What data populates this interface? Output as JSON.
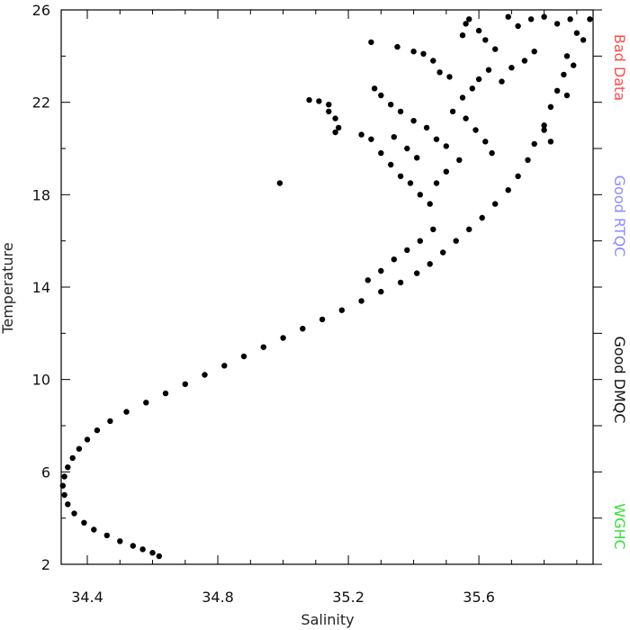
{
  "chart_data": {
    "type": "scatter",
    "title": "",
    "xlabel": "Salinity",
    "ylabel": "Temperature",
    "xlim": [
      34.32,
      35.95
    ],
    "ylim": [
      2,
      26
    ],
    "xticks": [
      34.4,
      34.8,
      35.2,
      35.6
    ],
    "xtick_labels": [
      "34.4",
      "34.8",
      "35.2",
      "35.6"
    ],
    "yticks": [
      2,
      6,
      10,
      14,
      18,
      22,
      26
    ],
    "ytick_labels": [
      "2",
      "6",
      "10",
      "14",
      "18",
      "22",
      "26"
    ],
    "grid": false,
    "legend_placement": "right, vertical",
    "legend": [
      {
        "label": "Bad Data",
        "color": "#ff4b4b"
      },
      {
        "label": "Good RTQC",
        "color": "#8c8cff"
      },
      {
        "label": "Good DMQC",
        "color": "#111111"
      },
      {
        "label": "WGHC",
        "color": "#38e038"
      }
    ],
    "series": [
      {
        "color": "#000000",
        "points": [
          [
            34.62,
            2.35
          ],
          [
            34.6,
            2.5
          ],
          [
            34.57,
            2.65
          ],
          [
            34.54,
            2.8
          ],
          [
            34.5,
            3.0
          ],
          [
            34.46,
            3.25
          ],
          [
            34.42,
            3.5
          ],
          [
            34.39,
            3.8
          ],
          [
            34.36,
            4.2
          ],
          [
            34.34,
            4.6
          ],
          [
            34.33,
            5.0
          ],
          [
            34.325,
            5.4
          ],
          [
            34.33,
            5.8
          ],
          [
            34.34,
            6.2
          ],
          [
            34.355,
            6.6
          ],
          [
            34.375,
            7.0
          ],
          [
            34.4,
            7.4
          ],
          [
            34.43,
            7.8
          ],
          [
            34.47,
            8.2
          ],
          [
            34.52,
            8.6
          ],
          [
            34.58,
            9.0
          ],
          [
            34.64,
            9.4
          ],
          [
            34.7,
            9.8
          ],
          [
            34.76,
            10.2
          ],
          [
            34.82,
            10.6
          ],
          [
            34.88,
            11.0
          ],
          [
            34.94,
            11.4
          ],
          [
            35.0,
            11.8
          ],
          [
            35.06,
            12.2
          ],
          [
            35.12,
            12.6
          ],
          [
            35.18,
            13.0
          ],
          [
            35.24,
            13.4
          ],
          [
            35.3,
            13.8
          ],
          [
            35.36,
            14.2
          ],
          [
            35.41,
            14.6
          ],
          [
            35.45,
            15.0
          ],
          [
            35.49,
            15.5
          ],
          [
            35.53,
            16.0
          ],
          [
            35.57,
            16.5
          ],
          [
            35.61,
            17.0
          ],
          [
            35.65,
            17.6
          ],
          [
            35.69,
            18.2
          ],
          [
            35.72,
            18.8
          ],
          [
            35.75,
            19.5
          ],
          [
            35.77,
            20.2
          ],
          [
            35.8,
            21.0
          ],
          [
            35.82,
            21.8
          ],
          [
            35.84,
            22.5
          ],
          [
            35.86,
            23.2
          ],
          [
            35.87,
            24.0
          ],
          [
            34.99,
            18.5
          ],
          [
            35.08,
            22.1
          ],
          [
            35.11,
            22.05
          ],
          [
            35.14,
            21.9
          ],
          [
            35.16,
            21.3
          ],
          [
            35.17,
            20.9
          ],
          [
            35.16,
            20.7
          ],
          [
            35.14,
            21.6
          ],
          [
            35.27,
            24.6
          ],
          [
            35.35,
            24.4
          ],
          [
            35.4,
            24.2
          ],
          [
            35.43,
            24.1
          ],
          [
            35.46,
            23.8
          ],
          [
            35.48,
            23.3
          ],
          [
            35.51,
            23.1
          ],
          [
            35.55,
            24.9
          ],
          [
            35.56,
            25.4
          ],
          [
            35.57,
            25.6
          ],
          [
            35.6,
            25.1
          ],
          [
            35.62,
            24.7
          ],
          [
            35.65,
            24.3
          ],
          [
            35.69,
            25.7
          ],
          [
            35.72,
            25.3
          ],
          [
            35.76,
            25.6
          ],
          [
            35.8,
            25.7
          ],
          [
            35.84,
            25.4
          ],
          [
            35.88,
            25.6
          ],
          [
            35.94,
            25.6
          ],
          [
            35.9,
            25.0
          ],
          [
            35.92,
            24.7
          ],
          [
            35.89,
            23.6
          ],
          [
            35.87,
            22.3
          ],
          [
            35.82,
            20.3
          ],
          [
            35.8,
            20.8
          ],
          [
            35.28,
            22.6
          ],
          [
            35.3,
            22.3
          ],
          [
            35.33,
            21.9
          ],
          [
            35.36,
            21.6
          ],
          [
            35.4,
            21.2
          ],
          [
            35.44,
            20.9
          ],
          [
            35.47,
            20.4
          ],
          [
            35.5,
            20.1
          ],
          [
            35.24,
            20.6
          ],
          [
            35.27,
            20.4
          ],
          [
            35.3,
            19.8
          ],
          [
            35.33,
            19.3
          ],
          [
            35.36,
            18.8
          ],
          [
            35.39,
            18.5
          ],
          [
            35.42,
            18.0
          ],
          [
            35.45,
            17.6
          ],
          [
            35.34,
            20.5
          ],
          [
            35.38,
            20.0
          ],
          [
            35.41,
            19.6
          ],
          [
            35.52,
            21.6
          ],
          [
            35.55,
            22.2
          ],
          [
            35.58,
            22.6
          ],
          [
            35.6,
            23.0
          ],
          [
            35.63,
            23.4
          ],
          [
            35.67,
            22.9
          ],
          [
            35.7,
            23.5
          ],
          [
            35.74,
            23.8
          ],
          [
            35.77,
            24.2
          ],
          [
            35.56,
            21.3
          ],
          [
            35.59,
            20.8
          ],
          [
            35.62,
            20.3
          ],
          [
            35.64,
            19.8
          ],
          [
            35.54,
            19.5
          ],
          [
            35.5,
            19.0
          ],
          [
            35.47,
            18.5
          ],
          [
            35.46,
            16.5
          ],
          [
            35.42,
            16.0
          ],
          [
            35.38,
            15.6
          ],
          [
            35.34,
            15.2
          ],
          [
            35.3,
            14.7
          ],
          [
            35.26,
            14.3
          ]
        ]
      }
    ]
  }
}
